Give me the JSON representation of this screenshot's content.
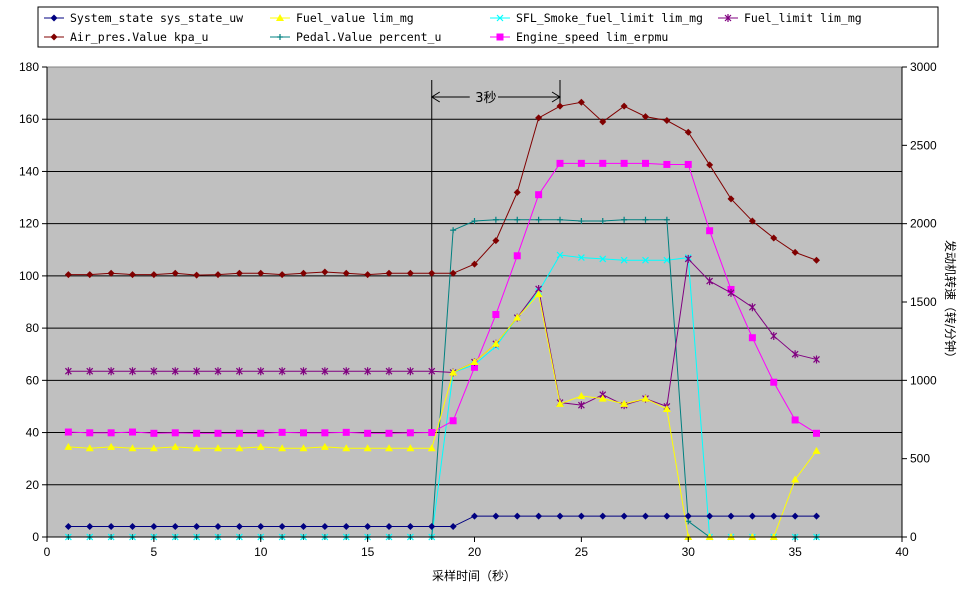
{
  "chart_data": {
    "type": "line",
    "title": "",
    "xlabel": "采样时间（秒）",
    "ylabel": "",
    "y2label": "发动机转速（转/分钟）",
    "xlim": [
      0,
      40
    ],
    "ylim": [
      0,
      180
    ],
    "y2lim": [
      0,
      3000
    ],
    "xticks": [
      "0",
      "5",
      "10",
      "15",
      "20",
      "25",
      "30",
      "35",
      "40"
    ],
    "yticks": [
      "0",
      "20",
      "40",
      "60",
      "80",
      "100",
      "120",
      "140",
      "160",
      "180"
    ],
    "y2ticks": [
      "0",
      "500",
      "1000",
      "1500",
      "2000",
      "2500",
      "3000"
    ],
    "grid": "horizontal",
    "legend_position": "top",
    "annotation": {
      "label": "3秒",
      "x_start": 18,
      "x_end": 24
    },
    "series": [
      {
        "name": "System_state sys_state_uw",
        "color": "#000080",
        "marker": "diamond",
        "axis": "left",
        "x": [
          1,
          2,
          3,
          4,
          5,
          6,
          7,
          8,
          9,
          10,
          11,
          12,
          13,
          14,
          15,
          16,
          17,
          18,
          19,
          20,
          21,
          22,
          23,
          24,
          25,
          26,
          27,
          28,
          29,
          30,
          31,
          32,
          33,
          34,
          35,
          36
        ],
        "values": [
          4,
          4,
          4,
          4,
          4,
          4,
          4,
          4,
          4,
          4,
          4,
          4,
          4,
          4,
          4,
          4,
          4,
          4,
          4,
          8,
          8,
          8,
          8,
          8,
          8,
          8,
          8,
          8,
          8,
          8,
          8,
          8,
          8,
          8,
          8,
          8
        ]
      },
      {
        "name": "Fuel_value lim_mg",
        "color": "#ffff00",
        "marker": "triangle",
        "axis": "left",
        "x": [
          1,
          2,
          3,
          4,
          5,
          6,
          7,
          8,
          9,
          10,
          11,
          12,
          13,
          14,
          15,
          16,
          17,
          18,
          19,
          20,
          21,
          22,
          23,
          24,
          25,
          26,
          27,
          28,
          29,
          30,
          31,
          32,
          33,
          34,
          35,
          36
        ],
        "values": [
          34.5,
          34,
          34.5,
          34,
          34,
          34.5,
          34,
          34,
          34,
          34.5,
          34,
          34,
          34.5,
          34,
          34,
          34,
          34,
          34,
          63,
          67,
          74,
          84,
          93,
          51,
          54,
          53,
          51,
          53,
          49,
          0,
          0,
          0,
          0,
          0,
          22,
          33
        ]
      },
      {
        "name": "SFL_Smoke_fuel_limit lim_mg",
        "color": "#00ffff",
        "marker": "x",
        "axis": "left",
        "x": [
          1,
          2,
          3,
          4,
          5,
          6,
          7,
          8,
          9,
          10,
          11,
          12,
          13,
          14,
          15,
          16,
          17,
          18,
          19,
          20,
          21,
          22,
          23,
          24,
          25,
          26,
          27,
          28,
          29,
          30,
          31,
          32,
          33,
          34,
          35,
          36
        ],
        "values": [
          0,
          0,
          0,
          0,
          0,
          0,
          0,
          0,
          0,
          0,
          0,
          0,
          0,
          0,
          0,
          0,
          0,
          0,
          63,
          66,
          73,
          84,
          94,
          108,
          107,
          106.5,
          106,
          106,
          106,
          107,
          0,
          0,
          0,
          0,
          0,
          0
        ]
      },
      {
        "name": "Fuel_limit lim_mg",
        "color": "#800080",
        "marker": "star",
        "axis": "left",
        "x": [
          1,
          2,
          3,
          4,
          5,
          6,
          7,
          8,
          9,
          10,
          11,
          12,
          13,
          14,
          15,
          16,
          17,
          18,
          19,
          20,
          21,
          22,
          23,
          24,
          25,
          26,
          27,
          28,
          29,
          30,
          31,
          32,
          33,
          34,
          35,
          36
        ],
        "values": [
          63.5,
          63.5,
          63.5,
          63.5,
          63.5,
          63.5,
          63.5,
          63.5,
          63.5,
          63.5,
          63.5,
          63.5,
          63.5,
          63.5,
          63.5,
          63.5,
          63.5,
          63.5,
          63,
          67,
          74,
          84,
          95,
          51.5,
          50.5,
          54.5,
          50.5,
          53,
          50,
          106.5,
          98,
          93.5,
          88,
          77,
          70,
          68
        ]
      },
      {
        "name": "Air_pres.Value kpa_u",
        "color": "#800000",
        "marker": "diamond",
        "axis": "left",
        "x": [
          1,
          2,
          3,
          4,
          5,
          6,
          7,
          8,
          9,
          10,
          11,
          12,
          13,
          14,
          15,
          16,
          17,
          18,
          19,
          20,
          21,
          22,
          23,
          24,
          25,
          26,
          27,
          28,
          29,
          30,
          31,
          32,
          33,
          34,
          35,
          36
        ],
        "values": [
          100.5,
          100.5,
          101,
          100.5,
          100.5,
          101,
          100.3,
          100.5,
          101,
          101,
          100.5,
          101,
          101.5,
          101,
          100.5,
          101,
          101,
          101,
          101,
          104.5,
          113.5,
          132,
          160.5,
          165,
          166.5,
          159,
          165,
          161,
          159.5,
          155,
          142.5,
          129.5,
          121,
          114.5,
          109,
          106
        ]
      },
      {
        "name": "Pedal.Value percent_u",
        "color": "#008080",
        "marker": "plus",
        "axis": "left",
        "x": [
          1,
          2,
          3,
          4,
          5,
          6,
          7,
          8,
          9,
          10,
          11,
          12,
          13,
          14,
          15,
          16,
          17,
          18,
          19,
          20,
          21,
          22,
          23,
          24,
          25,
          26,
          27,
          28,
          29,
          30,
          31,
          32,
          33,
          34,
          35,
          36
        ],
        "values": [
          0,
          0,
          0,
          0,
          0,
          0,
          0,
          0,
          0,
          0,
          0,
          0,
          0,
          0,
          0,
          0,
          0,
          0,
          117.5,
          121,
          121.5,
          121.5,
          121.5,
          121.5,
          121,
          121,
          121.5,
          121.5,
          121.5,
          6,
          0,
          0,
          0,
          0,
          0,
          0
        ]
      },
      {
        "name": "Engine_speed lim_erpmu",
        "color": "#ff00ff",
        "marker": "square",
        "axis": "right",
        "x": [
          1,
          2,
          3,
          4,
          5,
          6,
          7,
          8,
          9,
          10,
          11,
          12,
          13,
          14,
          15,
          16,
          17,
          18,
          19,
          20,
          21,
          22,
          23,
          24,
          25,
          26,
          27,
          28,
          29,
          30,
          31,
          32,
          33,
          34,
          35,
          36
        ],
        "values": [
          670,
          665,
          665,
          670,
          662,
          665,
          662,
          662,
          662,
          662,
          668,
          665,
          665,
          668,
          662,
          662,
          665,
          667,
          742,
          1083,
          1420,
          1795,
          2185,
          2385,
          2385,
          2385,
          2385,
          2385,
          2378,
          2378,
          1955,
          1580,
          1272,
          988,
          747,
          662
        ]
      }
    ]
  }
}
